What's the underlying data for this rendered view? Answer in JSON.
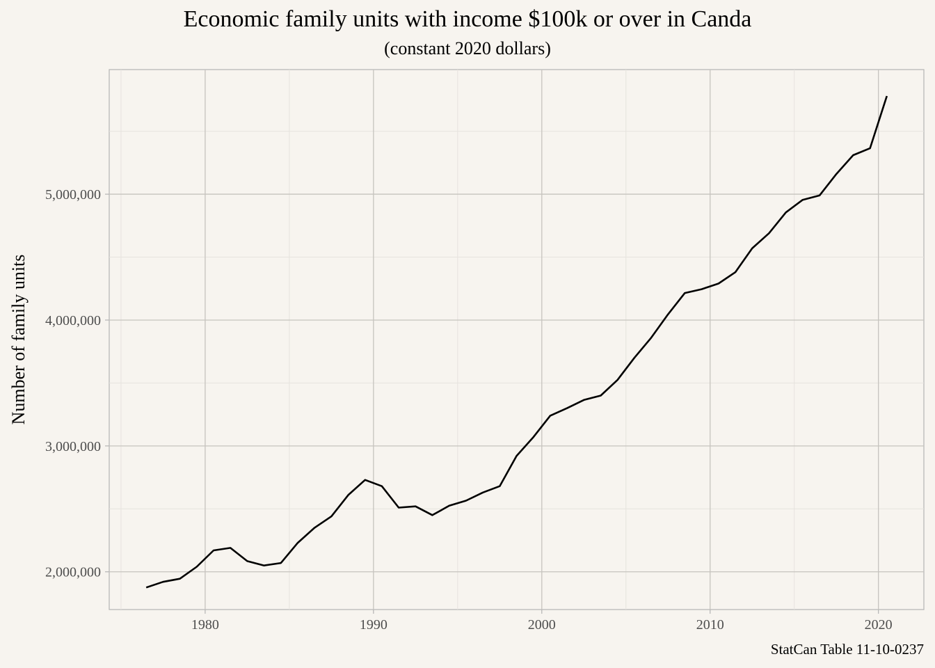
{
  "chart_data": {
    "type": "line",
    "title": "Economic family units with income $100k or over in Canda",
    "subtitle": "(constant 2020 dollars)",
    "xlabel": "",
    "ylabel": "Number of family units",
    "caption": "StatCan Table 11-10-0237",
    "xlim": [
      1974.3,
      2022.7
    ],
    "ylim": [
      1700000,
      5990000
    ],
    "x_ticks": [
      1980,
      1990,
      2000,
      2010,
      2020
    ],
    "x_tick_labels": [
      "1980",
      "1990",
      "2000",
      "2010",
      "2020"
    ],
    "y_ticks": [
      2000000,
      3000000,
      4000000,
      5000000
    ],
    "y_tick_labels": [
      "2,000,000",
      "3,000,000",
      "4,000,000",
      "5,000,000"
    ],
    "grid": true,
    "legend": "none",
    "line_color": "#000000",
    "background_color": "#f7f4ef",
    "x": [
      1976,
      1977,
      1978,
      1979,
      1980,
      1981,
      1982,
      1983,
      1984,
      1985,
      1986,
      1987,
      1988,
      1989,
      1990,
      1991,
      1992,
      1993,
      1994,
      1995,
      1996,
      1997,
      1998,
      1999,
      2000,
      2001,
      2002,
      2003,
      2004,
      2005,
      2006,
      2007,
      2008,
      2009,
      2010,
      2011,
      2012,
      2013,
      2014,
      2015,
      2016,
      2017,
      2018,
      2019,
      2020
    ],
    "y": [
      1875000,
      1920000,
      1945000,
      2040000,
      2170000,
      2190000,
      2085000,
      2050000,
      2070000,
      2230000,
      2350000,
      2440000,
      2610000,
      2730000,
      2680000,
      2510000,
      2520000,
      2450000,
      2525000,
      2565000,
      2630000,
      2680000,
      2920000,
      3070000,
      3240000,
      3300000,
      3365000,
      3400000,
      3525000,
      3700000,
      3860000,
      4045000,
      4215000,
      4245000,
      4290000,
      4380000,
      4570000,
      4690000,
      4855000,
      4955000,
      4990000,
      5160000,
      5310000,
      5365000,
      5780000
    ]
  }
}
